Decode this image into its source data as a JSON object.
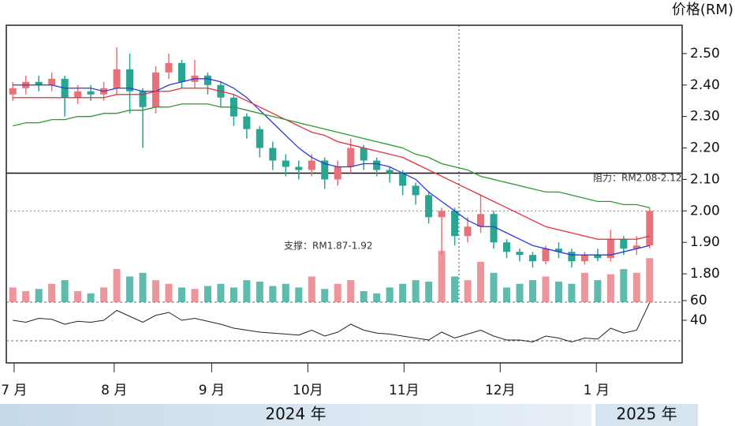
{
  "chart_data": {
    "type": "candlestick",
    "axis_title": "价格(RM)",
    "up_color": "#e8727a",
    "down_color": "#2aa493",
    "open": [
      2.37,
      2.39,
      2.41,
      2.4,
      2.42,
      2.36,
      2.38,
      2.37,
      2.39,
      2.45,
      2.38,
      2.33,
      2.44,
      2.47,
      2.41,
      2.43,
      2.4,
      2.36,
      2.3,
      2.26,
      2.2,
      2.16,
      2.14,
      2.13,
      2.16,
      2.1,
      2.14,
      2.2,
      2.16,
      2.13,
      2.12,
      2.08,
      2.05,
      1.98,
      2.0,
      1.92,
      1.95,
      1.99,
      1.9,
      1.87,
      1.86,
      1.84,
      1.88,
      1.87,
      1.84,
      1.86,
      1.85,
      1.91,
      1.88,
      1.89
    ],
    "high": [
      2.41,
      2.43,
      2.43,
      2.44,
      2.43,
      2.4,
      2.4,
      2.41,
      2.52,
      2.5,
      2.39,
      2.46,
      2.5,
      2.48,
      2.48,
      2.44,
      2.41,
      2.37,
      2.31,
      2.27,
      2.22,
      2.18,
      2.16,
      2.18,
      2.17,
      2.16,
      2.23,
      2.21,
      2.17,
      2.14,
      2.13,
      2.09,
      2.06,
      2.01,
      2.01,
      1.98,
      2.05,
      2.0,
      1.91,
      1.88,
      1.87,
      1.89,
      1.9,
      1.88,
      1.87,
      1.88,
      1.94,
      1.92,
      1.92,
      2.01
    ],
    "low": [
      2.35,
      2.37,
      2.38,
      2.38,
      2.3,
      2.34,
      2.35,
      2.35,
      2.37,
      2.31,
      2.2,
      2.31,
      2.42,
      2.39,
      2.39,
      2.37,
      2.33,
      2.27,
      2.23,
      2.17,
      2.13,
      2.11,
      2.1,
      2.11,
      2.07,
      2.08,
      2.12,
      2.13,
      2.11,
      2.09,
      2.05,
      2.02,
      1.96,
      1.86,
      1.89,
      1.9,
      1.93,
      1.88,
      1.85,
      1.84,
      1.82,
      1.83,
      1.85,
      1.82,
      1.83,
      1.84,
      1.84,
      1.86,
      1.86,
      1.88
    ],
    "close": [
      2.39,
      2.41,
      2.4,
      2.42,
      2.36,
      2.38,
      2.37,
      2.39,
      2.45,
      2.38,
      2.33,
      2.44,
      2.47,
      2.41,
      2.43,
      2.4,
      2.36,
      2.3,
      2.26,
      2.2,
      2.16,
      2.14,
      2.13,
      2.16,
      2.1,
      2.14,
      2.2,
      2.16,
      2.13,
      2.12,
      2.08,
      2.05,
      1.98,
      2.0,
      1.92,
      1.95,
      1.99,
      1.9,
      1.87,
      1.86,
      1.84,
      1.88,
      1.87,
      1.84,
      1.86,
      1.85,
      1.91,
      1.88,
      1.89,
      2.0
    ],
    "series": [
      {
        "color": "#2a3bd8",
        "values": [
          2.4,
          2.4,
          2.4,
          2.4,
          2.39,
          2.39,
          2.39,
          2.38,
          2.39,
          2.39,
          2.38,
          2.38,
          2.4,
          2.41,
          2.42,
          2.42,
          2.41,
          2.39,
          2.36,
          2.32,
          2.28,
          2.24,
          2.2,
          2.17,
          2.15,
          2.14,
          2.14,
          2.15,
          2.15,
          2.14,
          2.12,
          2.1,
          2.06,
          2.03,
          2.0,
          1.97,
          1.95,
          1.95,
          1.93,
          1.91,
          1.89,
          1.88,
          1.87,
          1.86,
          1.86,
          1.86,
          1.86,
          1.87,
          1.88,
          1.89
        ]
      },
      {
        "color": "#e0303a",
        "values": [
          2.36,
          2.36,
          2.36,
          2.36,
          2.36,
          2.36,
          2.36,
          2.36,
          2.37,
          2.37,
          2.37,
          2.38,
          2.38,
          2.39,
          2.39,
          2.39,
          2.38,
          2.37,
          2.35,
          2.33,
          2.31,
          2.29,
          2.27,
          2.25,
          2.24,
          2.22,
          2.21,
          2.2,
          2.19,
          2.18,
          2.17,
          2.15,
          2.13,
          2.11,
          2.09,
          2.07,
          2.05,
          2.03,
          2.01,
          1.99,
          1.97,
          1.95,
          1.94,
          1.93,
          1.92,
          1.91,
          1.91,
          1.91,
          1.91,
          1.92
        ]
      },
      {
        "color": "#2e9a2e",
        "values": [
          2.27,
          2.28,
          2.28,
          2.29,
          2.29,
          2.3,
          2.3,
          2.31,
          2.31,
          2.32,
          2.32,
          2.33,
          2.33,
          2.34,
          2.34,
          2.34,
          2.33,
          2.33,
          2.32,
          2.31,
          2.3,
          2.29,
          2.28,
          2.27,
          2.26,
          2.25,
          2.24,
          2.23,
          2.22,
          2.21,
          2.2,
          2.18,
          2.17,
          2.15,
          2.14,
          2.13,
          2.11,
          2.1,
          2.09,
          2.08,
          2.07,
          2.06,
          2.06,
          2.05,
          2.04,
          2.03,
          2.03,
          2.02,
          2.02,
          2.01
        ]
      }
    ],
    "volume": {
      "ylim": [
        0,
        100
      ],
      "values": [
        20,
        15,
        18,
        25,
        30,
        15,
        12,
        20,
        45,
        35,
        40,
        30,
        25,
        20,
        18,
        22,
        25,
        20,
        30,
        28,
        22,
        25,
        20,
        35,
        18,
        25,
        30,
        15,
        12,
        20,
        25,
        30,
        28,
        70,
        35,
        30,
        55,
        40,
        20,
        25,
        30,
        35,
        28,
        25,
        40,
        30,
        38,
        45,
        40,
        60
      ]
    },
    "rsi": {
      "color": "#222",
      "ylim": [
        0,
        60
      ],
      "yticks": [
        40,
        60
      ],
      "values": [
        40,
        38,
        42,
        41,
        36,
        39,
        38,
        40,
        50,
        44,
        38,
        45,
        48,
        40,
        42,
        39,
        36,
        32,
        30,
        28,
        27,
        26,
        25,
        30,
        24,
        28,
        36,
        30,
        27,
        26,
        24,
        22,
        20,
        28,
        22,
        26,
        30,
        24,
        20,
        20,
        18,
        24,
        22,
        18,
        22,
        21,
        32,
        27,
        30,
        58
      ]
    },
    "ylim": [
      1.71,
      2.59
    ],
    "yticks": [
      {
        "value": 1.8,
        "label": "1.80"
      },
      {
        "value": 1.9,
        "label": "1.90"
      },
      {
        "value": 2.0,
        "label": "2.00"
      },
      {
        "value": 2.1,
        "label": "2.10"
      },
      {
        "value": 2.2,
        "label": "2.20"
      },
      {
        "value": 2.3,
        "label": "2.30"
      },
      {
        "value": 2.4,
        "label": "2.40"
      },
      {
        "value": 2.5,
        "label": "2.50"
      }
    ],
    "xlim": [
      0,
      52
    ],
    "xticks": [
      {
        "value": 0.6,
        "label": "7 月"
      },
      {
        "value": 8.3,
        "label": "8 月"
      },
      {
        "value": 15.8,
        "label": "9 月"
      },
      {
        "value": 23.2,
        "label": "10月"
      },
      {
        "value": 30.6,
        "label": "11月"
      },
      {
        "value": 38.0,
        "label": "12月"
      },
      {
        "value": 45.4,
        "label": "1 月"
      }
    ],
    "levels": [
      {
        "value": 2.12,
        "style": "solid"
      },
      {
        "value": 2.0,
        "style": "dotted"
      }
    ],
    "annotations": [
      "阻力：RM2.08-2.12",
      "支撑：RM1.87-1.92"
    ],
    "year_labels": [
      "2024 年",
      "2025 年"
    ]
  }
}
